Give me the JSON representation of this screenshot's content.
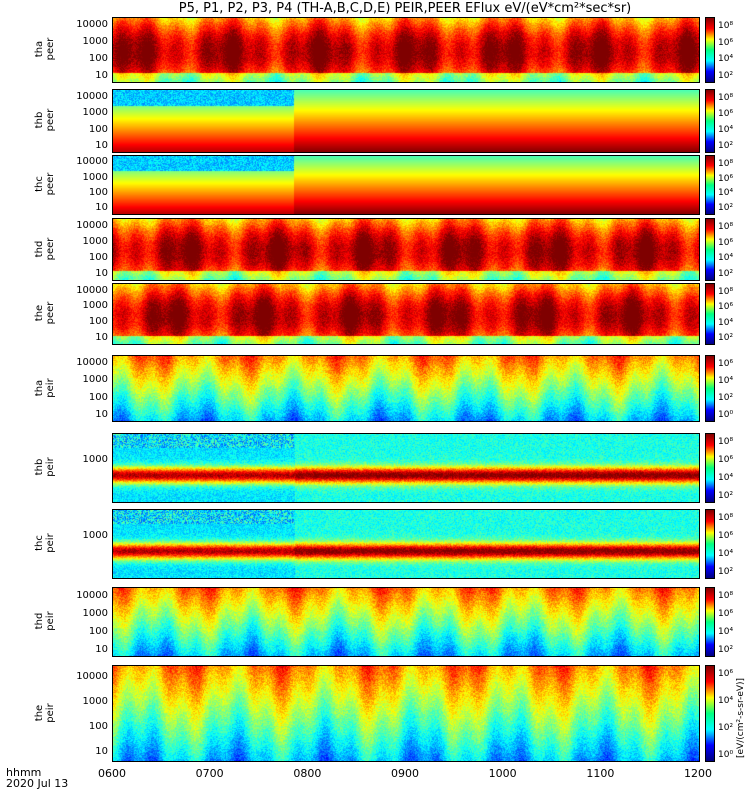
{
  "chart_data": {
    "type": "heatmap",
    "title": "P5, P1, P2, P3, P4 (TH-A,B,C,D,E) PEIR,PEER EFlux eV/(eV*cm²*sec*sr)",
    "xlabel_line1": "hhmm",
    "xlabel_line2": "2020 Jul 13",
    "x_ticks": [
      "0600",
      "0700",
      "0800",
      "0900",
      "1000",
      "1100",
      "1200"
    ],
    "x_range": [
      600,
      1200
    ],
    "colorbar_unit": "[eV/(cm²-s-sr-eV)]",
    "panels": [
      {
        "probe": "tha",
        "species": "peer",
        "ylabel": "tha\npeer",
        "ylim": [
          5,
          30000
        ],
        "yticks": [
          "10000",
          "1000",
          "100",
          "10"
        ],
        "colorbar_ticks": [
          "10⁸",
          "10⁶",
          "10⁴",
          "10²"
        ]
      },
      {
        "probe": "thb",
        "species": "peer",
        "ylabel": "thb\npeer",
        "ylim": [
          5,
          30000
        ],
        "yticks": [
          "10000",
          "1000",
          "100",
          "10"
        ],
        "colorbar_ticks": [
          "10⁸",
          "10⁶",
          "10⁴",
          "10²"
        ]
      },
      {
        "probe": "thc",
        "species": "peer",
        "ylabel": "thc\npeer",
        "ylim": [
          5,
          30000
        ],
        "yticks": [
          "10000",
          "1000",
          "100",
          "10"
        ],
        "colorbar_ticks": [
          "10⁸",
          "10⁶",
          "10⁴",
          "10²"
        ]
      },
      {
        "probe": "thd",
        "species": "peer",
        "ylabel": "thd\npeer",
        "ylim": [
          5,
          30000
        ],
        "yticks": [
          "10000",
          "1000",
          "100",
          "10"
        ],
        "colorbar_ticks": [
          "10⁸",
          "10⁶",
          "10⁴",
          "10²"
        ]
      },
      {
        "probe": "the",
        "species": "peer",
        "ylabel": "the\npeer",
        "ylim": [
          5,
          30000
        ],
        "yticks": [
          "10000",
          "1000",
          "100",
          "10"
        ],
        "colorbar_ticks": [
          "10⁸",
          "10⁶",
          "10⁴",
          "10²"
        ]
      },
      {
        "probe": "tha",
        "species": "peir",
        "ylabel": "tha\npeir",
        "ylim": [
          5,
          30000
        ],
        "yticks": [
          "10000",
          "1000",
          "100",
          "10"
        ],
        "colorbar_ticks": [
          "10⁶",
          "10⁴",
          "10²",
          "10⁰"
        ]
      },
      {
        "probe": "thb",
        "species": "peir",
        "ylabel": "thb\npeir",
        "ylim": [
          5,
          30000
        ],
        "yticks": [
          "1000"
        ],
        "colorbar_ticks": [
          "10⁸",
          "10⁶",
          "10⁴",
          "10²"
        ]
      },
      {
        "probe": "thc",
        "species": "peir",
        "ylabel": "thc\npeir",
        "ylim": [
          5,
          30000
        ],
        "yticks": [
          "1000"
        ],
        "colorbar_ticks": [
          "10⁸",
          "10⁶",
          "10⁴",
          "10²"
        ]
      },
      {
        "probe": "thd",
        "species": "peir",
        "ylabel": "thd\npeir",
        "ylim": [
          5,
          30000
        ],
        "yticks": [
          "10000",
          "1000",
          "100",
          "10"
        ],
        "colorbar_ticks": [
          "10⁸",
          "10⁶",
          "10⁴",
          "10²"
        ]
      },
      {
        "probe": "the",
        "species": "peir",
        "ylabel": "the\npeir",
        "ylim": [
          5,
          30000
        ],
        "yticks": [
          "10000",
          "1000",
          "100",
          "10"
        ],
        "colorbar_ticks": [
          "10⁶",
          "10⁴",
          "10²",
          "10⁰"
        ]
      }
    ]
  }
}
